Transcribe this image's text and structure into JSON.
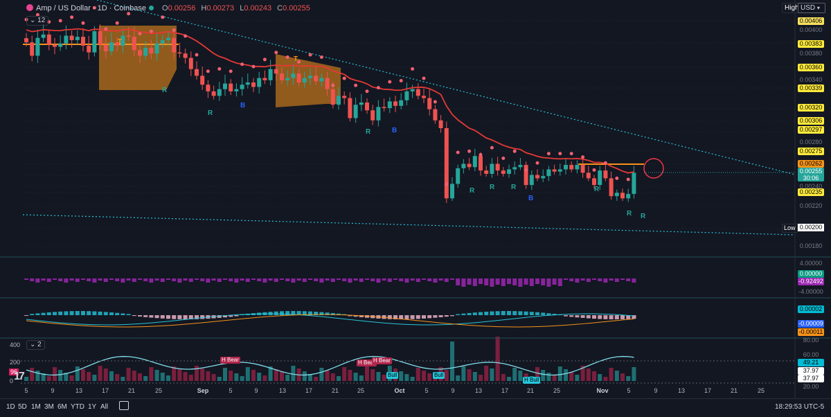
{
  "header": {
    "symbol": "Amp / US Dollar · 1D · Coinbase",
    "open_label": "O",
    "open": "0.00256",
    "high_label": "H",
    "high": "0.00273",
    "low_label": "L",
    "low": "0.00243",
    "close_label": "C",
    "close": "0.00255",
    "indicator_count": "12",
    "volume_indicator_count": "2"
  },
  "top_right": {
    "high_badge": "High",
    "currency": "USD"
  },
  "price_axis": {
    "labels_plain": [
      "0.00400",
      "0.00380",
      "0.00340",
      "0.00280",
      "0.00240",
      "0.00220",
      "0.00180"
    ],
    "lbl_00406": "0.00406",
    "lbl_00383": "0.00383",
    "lbl_00360": "0.00360",
    "lbl_00339": "0.00339",
    "lbl_00320": "0.00320",
    "lbl_00306": "0.00306",
    "lbl_00297": "0.00297",
    "lbl_00275": "0.00275",
    "lbl_00262": "0.00262",
    "current_price": "0.00255",
    "countdown": "30:06",
    "lbl_00235": "0.00235",
    "low_badge": "Low",
    "low_value": "0.00200"
  },
  "macd_axis": {
    "top": "4.00000",
    "bottom": "-4.00000",
    "value1": "0.00000",
    "value2": "-0.92492"
  },
  "osc_axis": {
    "value1": "0.00002",
    "value2": "-0.00009",
    "value3": "-0.00011"
  },
  "vol_axis": {
    "left_400": "400",
    "left_200": "200",
    "left_0": "0",
    "left_badge": "96",
    "right_80": "80.00",
    "right_60": "60.00",
    "right_4921": "49.21",
    "right_3797a": "37.97",
    "right_3797b": "37.97",
    "right_20": "20.00"
  },
  "signals": {
    "T": "T",
    "R": "R",
    "B": "B",
    "h_bear": "H Bear",
    "bull": "Bull",
    "h_bull": "H Bull"
  },
  "x_axis": {
    "ticks": [
      "5",
      "9",
      "13",
      "17",
      "21",
      "25",
      "Sep",
      "5",
      "9",
      "13",
      "17",
      "21",
      "25",
      "Oct",
      "5",
      "9",
      "13",
      "17",
      "21",
      "25",
      "Nov",
      "5",
      "9",
      "13",
      "17",
      "21",
      "25"
    ]
  },
  "timeframes": [
    "1D",
    "5D",
    "1M",
    "3M",
    "6M",
    "YTD",
    "1Y",
    "All"
  ],
  "clock": "18:29:53 UTC-5",
  "colors": {
    "bg": "#131722",
    "up": "#26a69a",
    "down": "#ef5350",
    "ema": "#e53935",
    "trend": "#26c6da",
    "band": "#f7931a",
    "macd": "#9c27b0"
  },
  "chart_data": {
    "type": "candlestick",
    "title": "Amp / US Dollar · 1D · Coinbase",
    "ylim": [
      0.0018,
      0.0041
    ],
    "scale": "linear",
    "grid": true,
    "latest": {
      "open": 0.00256,
      "high": 0.00273,
      "low": 0.00243,
      "close": 0.00255
    },
    "closes_estimated": [
      0.00372,
      0.0036,
      0.00376,
      0.00379,
      0.0037,
      0.00368,
      0.00371,
      0.00378,
      0.00374,
      0.00377,
      0.00369,
      0.00363,
      0.00382,
      0.0037,
      0.00364,
      0.00372,
      0.00369,
      0.00378,
      0.00377,
      0.00365,
      0.0036,
      0.00367,
      0.00362,
      0.00371,
      0.00374,
      0.00376,
      0.00363,
      0.00362,
      0.00358,
      0.00348,
      0.00342,
      0.00334,
      0.00328,
      0.00324,
      0.0033,
      0.00335,
      0.00328,
      0.0033,
      0.00334,
      0.00336,
      0.00332,
      0.0034,
      0.00338,
      0.00348,
      0.00344,
      0.00338,
      0.0034,
      0.00344,
      0.00336,
      0.0034,
      0.00342,
      0.00337,
      0.0034,
      0.0033,
      0.00316,
      0.00324,
      0.00322,
      0.00304,
      0.00316,
      0.00318,
      0.00311,
      0.00302,
      0.00314,
      0.00313,
      0.00319,
      0.00315,
      0.0032,
      0.00328,
      0.0033,
      0.00324,
      0.00322,
      0.00312,
      0.00302,
      0.00295,
      0.00232,
      0.00245,
      0.00259,
      0.00263,
      0.0026,
      0.0027,
      0.00257,
      0.00254,
      0.00263,
      0.00257,
      0.00254,
      0.00258,
      0.0026,
      0.00262,
      0.00244,
      0.00253,
      0.0025,
      0.00252,
      0.00258,
      0.00256,
      0.00258,
      0.00262,
      0.00258,
      0.00262,
      0.00255,
      0.0025,
      0.00244,
      0.00257,
      0.0025,
      0.00234,
      0.00237,
      0.00232,
      0.00236,
      0.00255
    ]
  }
}
